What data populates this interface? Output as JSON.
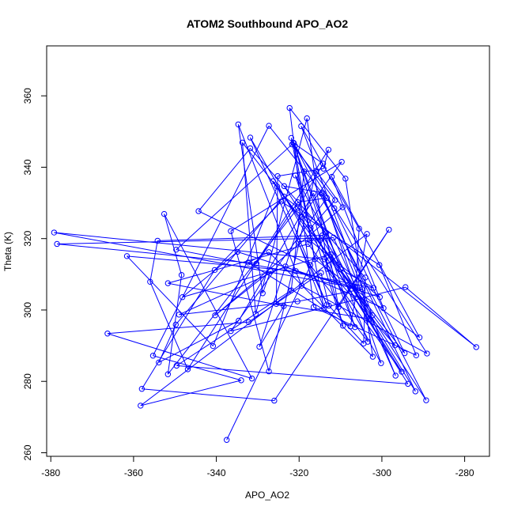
{
  "chart_data": {
    "type": "line",
    "title": "ATOM2 Southbound APO_AO2",
    "xlabel": "APO_AO2",
    "ylabel": "Theta (K)",
    "xlim": [
      -381,
      -274
    ],
    "ylim": [
      259,
      374
    ],
    "x_ticks": [
      -380,
      -360,
      -340,
      -320,
      -300,
      -280
    ],
    "y_ticks": [
      260,
      280,
      300,
      320,
      340,
      360
    ],
    "grid": false,
    "legend": "none",
    "color": "#0000ff",
    "marker": "open-circle",
    "series": [
      {
        "points": [
          [
            -337.5,
            263.6
          ],
          [
            -313.5,
            321.5
          ],
          [
            -310.5,
            300.8
          ],
          [
            -298.3,
            322.5
          ],
          [
            -326,
            274.6
          ],
          [
            -358,
            277.9
          ],
          [
            -340.4,
            311.2
          ],
          [
            -324.3,
            330.4
          ],
          [
            -300.6,
            312.6
          ],
          [
            -291.7,
            287.3
          ],
          [
            -316.5,
            300.8
          ],
          [
            -322.3,
            356.6
          ],
          [
            -308.8,
            336.8
          ],
          [
            -302.2,
            286.9
          ],
          [
            -327.3,
            316.2
          ],
          [
            -332.3,
            313.3
          ],
          [
            -307.6,
            295.4
          ],
          [
            -303.6,
            321.3
          ],
          [
            -358.3,
            273.2
          ],
          [
            -334,
            280.3
          ],
          [
            -355.3,
            287.2
          ],
          [
            -327.3,
            351.6
          ],
          [
            -311.5,
            328.5
          ],
          [
            -294.5,
            287.9
          ],
          [
            -333.7,
            346.9
          ],
          [
            -330.5,
            298.9
          ],
          [
            -318.1,
            353.7
          ],
          [
            -313.1,
            311.5
          ],
          [
            -296.8,
            290.1
          ],
          [
            -326.3,
            336.1
          ],
          [
            -312.9,
            313.9
          ],
          [
            -306.5,
            295.2
          ],
          [
            -321.3,
            346.8
          ],
          [
            -316.2,
            314.2
          ],
          [
            -290.9,
            292.3
          ],
          [
            -312.1,
            337.3
          ],
          [
            -299.6,
            300.5
          ],
          [
            -323.3,
            312.2
          ],
          [
            -349,
            298.7
          ],
          [
            -320.4,
            302.4
          ],
          [
            -304.8,
            305.8
          ],
          [
            -320.8,
            310.9
          ],
          [
            -361.6,
            315.1
          ],
          [
            -340.8,
            289.9
          ],
          [
            -325.3,
            334.6
          ],
          [
            -313.3,
            301.5
          ],
          [
            -331.8,
            348.3
          ],
          [
            -317.4,
            319.5
          ],
          [
            -300.5,
            303.6
          ],
          [
            -334.9,
            316.3
          ],
          [
            -348.2,
            303.6
          ],
          [
            -312.4,
            315.6
          ],
          [
            -289.3,
            274.7
          ],
          [
            -321,
            346
          ],
          [
            -309.4,
            295.6
          ],
          [
            -320.9,
            337.7
          ],
          [
            -303,
            297.5
          ],
          [
            -325.5,
            301.7
          ],
          [
            -325.2,
            337.5
          ],
          [
            -314.1,
            339.6
          ],
          [
            -312.9,
            344.9
          ],
          [
            -346.9,
            283.4
          ],
          [
            -356,
            307.9
          ],
          [
            -354.2,
            319.4
          ],
          [
            -314.4,
            320.9
          ],
          [
            -302.3,
            298.5
          ],
          [
            -319.5,
            351.5
          ],
          [
            -305.5,
            322.8
          ],
          [
            -306.3,
            306.2
          ],
          [
            -379.2,
            321.7
          ],
          [
            -313.8,
            314.2
          ],
          [
            -300.2,
            285.1
          ],
          [
            -314.3,
            332.8
          ],
          [
            -323.6,
            334.7
          ],
          [
            -295.2,
            282.7
          ],
          [
            -317.8,
            318.5
          ],
          [
            -351.7,
            307.5
          ],
          [
            -323.7,
            301.1
          ],
          [
            -329.6,
            289.7
          ],
          [
            -319.4,
            326.1
          ],
          [
            -309.7,
            341.5
          ],
          [
            -336.5,
            322.1
          ],
          [
            -327.3,
            282.8
          ],
          [
            -315.9,
            339
          ],
          [
            -309.5,
            328.8
          ],
          [
            -340.3,
            298.5
          ],
          [
            -326.9,
            310.9
          ],
          [
            -328.8,
            304.7
          ],
          [
            -334.7,
            352
          ],
          [
            -319.4,
            306.8
          ],
          [
            -289.1,
            287.8
          ],
          [
            -321.4,
            346.8
          ],
          [
            -314.2,
            341
          ],
          [
            -320.3,
            328.6
          ],
          [
            -351.7,
            282
          ],
          [
            -348.4,
            309.8
          ],
          [
            -352.6,
            326.9
          ],
          [
            -331.4,
            280.8
          ],
          [
            -366.3,
            293.4
          ],
          [
            -332.2,
            296.6
          ],
          [
            -314.7,
            310.4
          ],
          [
            -312.8,
            301.2
          ],
          [
            -304.4,
            290.6
          ],
          [
            -304,
            309.1
          ],
          [
            -331.8,
            345.3
          ],
          [
            -344.3,
            327.7
          ],
          [
            -317.3,
            312.6
          ],
          [
            -303.4,
            291.1
          ],
          [
            -321.9,
            348.2
          ],
          [
            -314,
            300.5
          ],
          [
            -320.2,
            319.1
          ],
          [
            -311.7,
            320.3
          ],
          [
            -296.7,
            281.6
          ],
          [
            -314.6,
            332.6
          ],
          [
            -291.9,
            277.2
          ],
          [
            -314.6,
            320.1
          ],
          [
            -378.5,
            318.5
          ],
          [
            -330.3,
            313
          ],
          [
            -320.3,
            330.2
          ],
          [
            -313.3,
            331.4
          ],
          [
            -336.5,
            294.1
          ],
          [
            -294.3,
            306.4
          ],
          [
            -277.2,
            289.6
          ],
          [
            -323.7,
            331.8
          ],
          [
            -349.8,
            295.9
          ],
          [
            -353.9,
            285.3
          ],
          [
            -334.6,
            297
          ],
          [
            -316.5,
            332.7
          ],
          [
            -310,
            311.4
          ],
          [
            -302,
            306.2
          ],
          [
            -349.7,
            316.9
          ],
          [
            -321.7,
            346.4
          ],
          [
            -311.3,
            330.8
          ],
          [
            -317.2,
            323
          ],
          [
            -293.7,
            279.3
          ],
          [
            -349.6,
            284.4
          ],
          [
            -321.9,
            305.5
          ],
          [
            -318.8,
            338.8
          ]
        ]
      }
    ]
  }
}
